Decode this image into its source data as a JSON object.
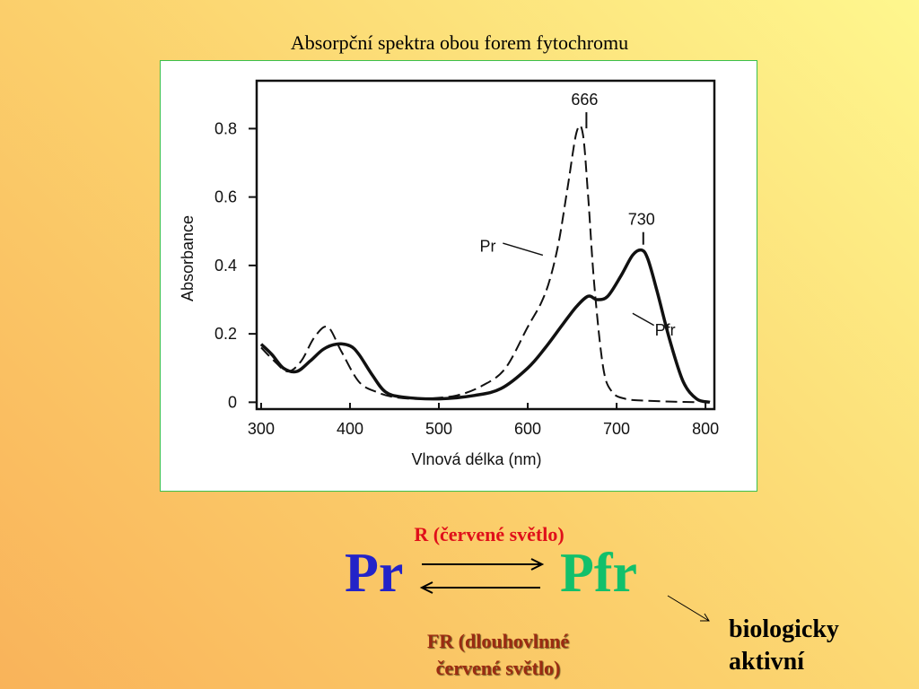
{
  "slide": {
    "title": "Absorpční spektra obou forem fytochromu",
    "red_light_label": "R (červené světlo)",
    "pr": "Pr",
    "pfr": "Pfr",
    "far_red_line1": "FR (dlouhovlnné",
    "far_red_line2": "červené světlo)",
    "bio_line1": "biologicky",
    "bio_line2": "aktivní"
  },
  "chart_data": {
    "type": "line",
    "title": "",
    "xlabel": "Vlnová délka (nm)",
    "ylabel": "Absorbance",
    "xlim": [
      295,
      810
    ],
    "ylim": [
      -0.02,
      0.94
    ],
    "xticks": [
      300,
      400,
      500,
      600,
      700,
      800
    ],
    "yticks": [
      0,
      0.2,
      0.4,
      0.6,
      0.8
    ],
    "ytick_labels": [
      "0",
      "0.2",
      "0.4",
      "0.6",
      "0.8"
    ],
    "grid": false,
    "legend": "none",
    "series": [
      {
        "name": "Pr",
        "style": "dashed",
        "x": [
          300,
          315,
          330,
          345,
          360,
          375,
          390,
          410,
          430,
          450,
          480,
          520,
          550,
          575,
          600,
          615,
          625,
          635,
          645,
          655,
          662,
          668,
          675,
          685,
          695,
          710,
          730,
          760,
          790
        ],
        "y": [
          0.16,
          0.12,
          0.09,
          0.12,
          0.19,
          0.22,
          0.15,
          0.06,
          0.03,
          0.015,
          0.01,
          0.02,
          0.05,
          0.1,
          0.22,
          0.29,
          0.36,
          0.47,
          0.63,
          0.79,
          0.785,
          0.6,
          0.34,
          0.1,
          0.03,
          0.01,
          0.005,
          0.002,
          0.0
        ]
      },
      {
        "name": "Pfr",
        "style": "solid",
        "x": [
          300,
          312,
          325,
          340,
          355,
          370,
          385,
          400,
          410,
          425,
          440,
          460,
          500,
          540,
          570,
          600,
          620,
          640,
          655,
          668,
          678,
          690,
          705,
          718,
          728,
          735,
          745,
          760,
          775,
          790,
          805
        ],
        "y": [
          0.17,
          0.14,
          0.1,
          0.09,
          0.12,
          0.155,
          0.17,
          0.165,
          0.14,
          0.08,
          0.03,
          0.015,
          0.01,
          0.02,
          0.04,
          0.1,
          0.16,
          0.23,
          0.28,
          0.31,
          0.3,
          0.31,
          0.37,
          0.43,
          0.445,
          0.42,
          0.33,
          0.18,
          0.06,
          0.01,
          0.0
        ]
      }
    ],
    "annotations": [
      {
        "text": "666",
        "x": 666,
        "y": 0.785
      },
      {
        "text": "730",
        "x": 730,
        "y": 0.445
      },
      {
        "text": "Pr",
        "series": "Pr"
      },
      {
        "text": "Pfr",
        "series": "Pfr"
      }
    ]
  }
}
